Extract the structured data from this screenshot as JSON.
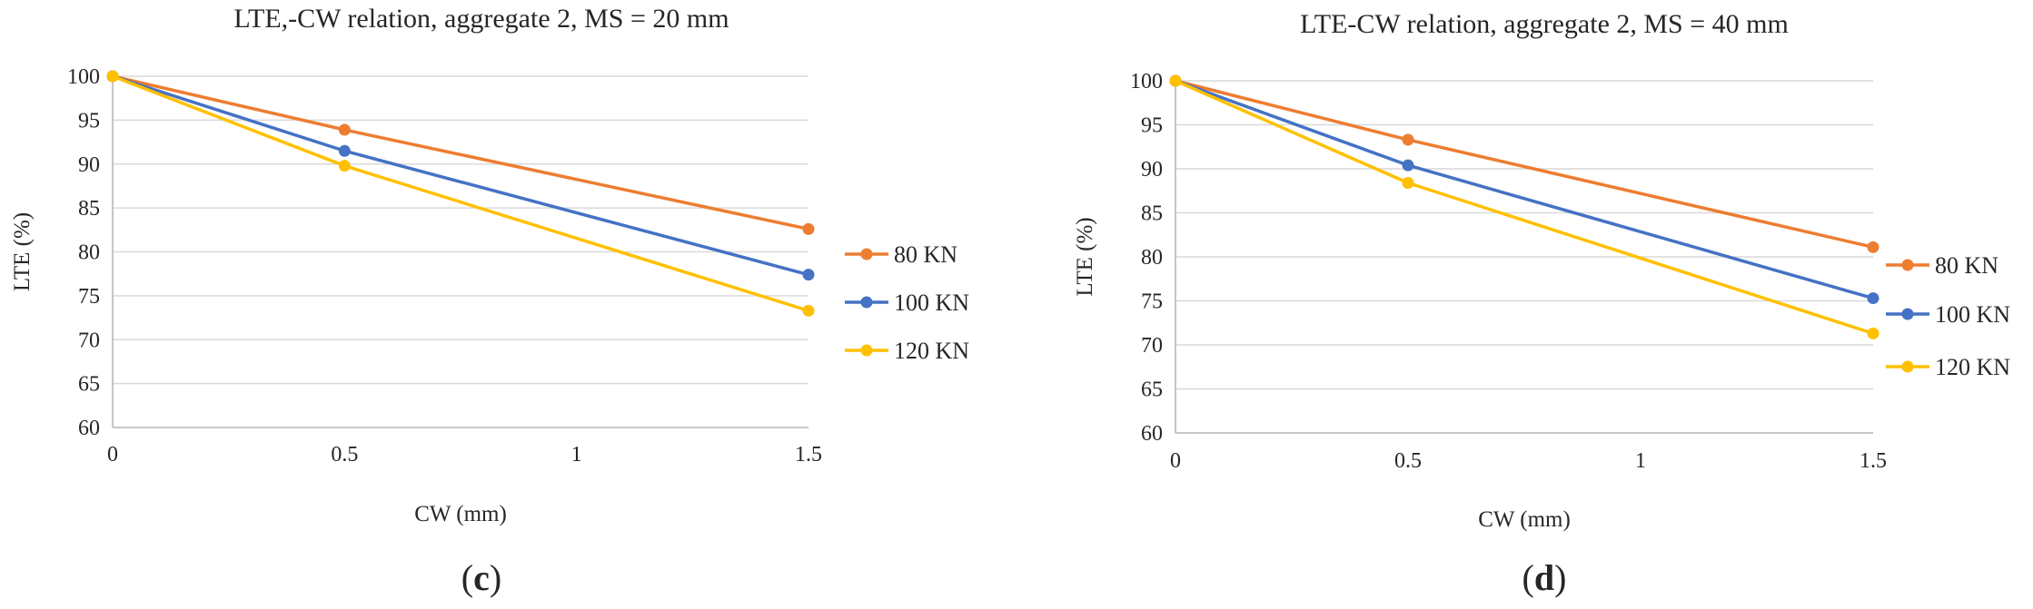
{
  "chart_data": [
    {
      "type": "line",
      "title": "LTE,-CW relation, aggregate 2, MS = 20 mm",
      "xlabel": "CW (mm)",
      "ylabel": "LTE (%)",
      "x": [
        0,
        0.5,
        1.5
      ],
      "xticks": [
        "0",
        "0.5",
        "1",
        "1.5"
      ],
      "xlim": [
        0,
        1.5
      ],
      "ylim": [
        60,
        100
      ],
      "yticks": [
        "60",
        "65",
        "70",
        "75",
        "80",
        "85",
        "90",
        "95",
        "100"
      ],
      "grid": true,
      "legend_position": "right",
      "series": [
        {
          "name": "80 KN",
          "color": "#ED7D31",
          "values": [
            100,
            93.9,
            82.6
          ]
        },
        {
          "name": "100 KN",
          "color": "#4472C4",
          "values": [
            100,
            91.5,
            77.4
          ]
        },
        {
          "name": "120 KN",
          "color": "#FFC000",
          "values": [
            100,
            89.8,
            73.3
          ]
        }
      ],
      "panel_label": {
        "open": "(",
        "letter": "c",
        "close": ")"
      }
    },
    {
      "type": "line",
      "title": "LTE-CW relation, aggregate 2, MS = 40 mm",
      "xlabel": "CW (mm)",
      "ylabel": "LTE (%)",
      "x": [
        0,
        0.5,
        1.5
      ],
      "xticks": [
        "0",
        "0.5",
        "1",
        "1.5"
      ],
      "xlim": [
        0,
        1.5
      ],
      "ylim": [
        60,
        100
      ],
      "yticks": [
        "60",
        "65",
        "70",
        "75",
        "80",
        "85",
        "90",
        "95",
        "100"
      ],
      "grid": true,
      "legend_position": "right",
      "series": [
        {
          "name": "80 KN",
          "color": "#ED7D31",
          "values": [
            100,
            93.3,
            81.1
          ]
        },
        {
          "name": "100 KN",
          "color": "#4472C4",
          "values": [
            100,
            90.4,
            75.3
          ]
        },
        {
          "name": "120 KN",
          "color": "#FFC000",
          "values": [
            100,
            88.4,
            71.3
          ]
        }
      ],
      "panel_label": {
        "open": "(",
        "letter": "d",
        "close": ")"
      }
    }
  ]
}
